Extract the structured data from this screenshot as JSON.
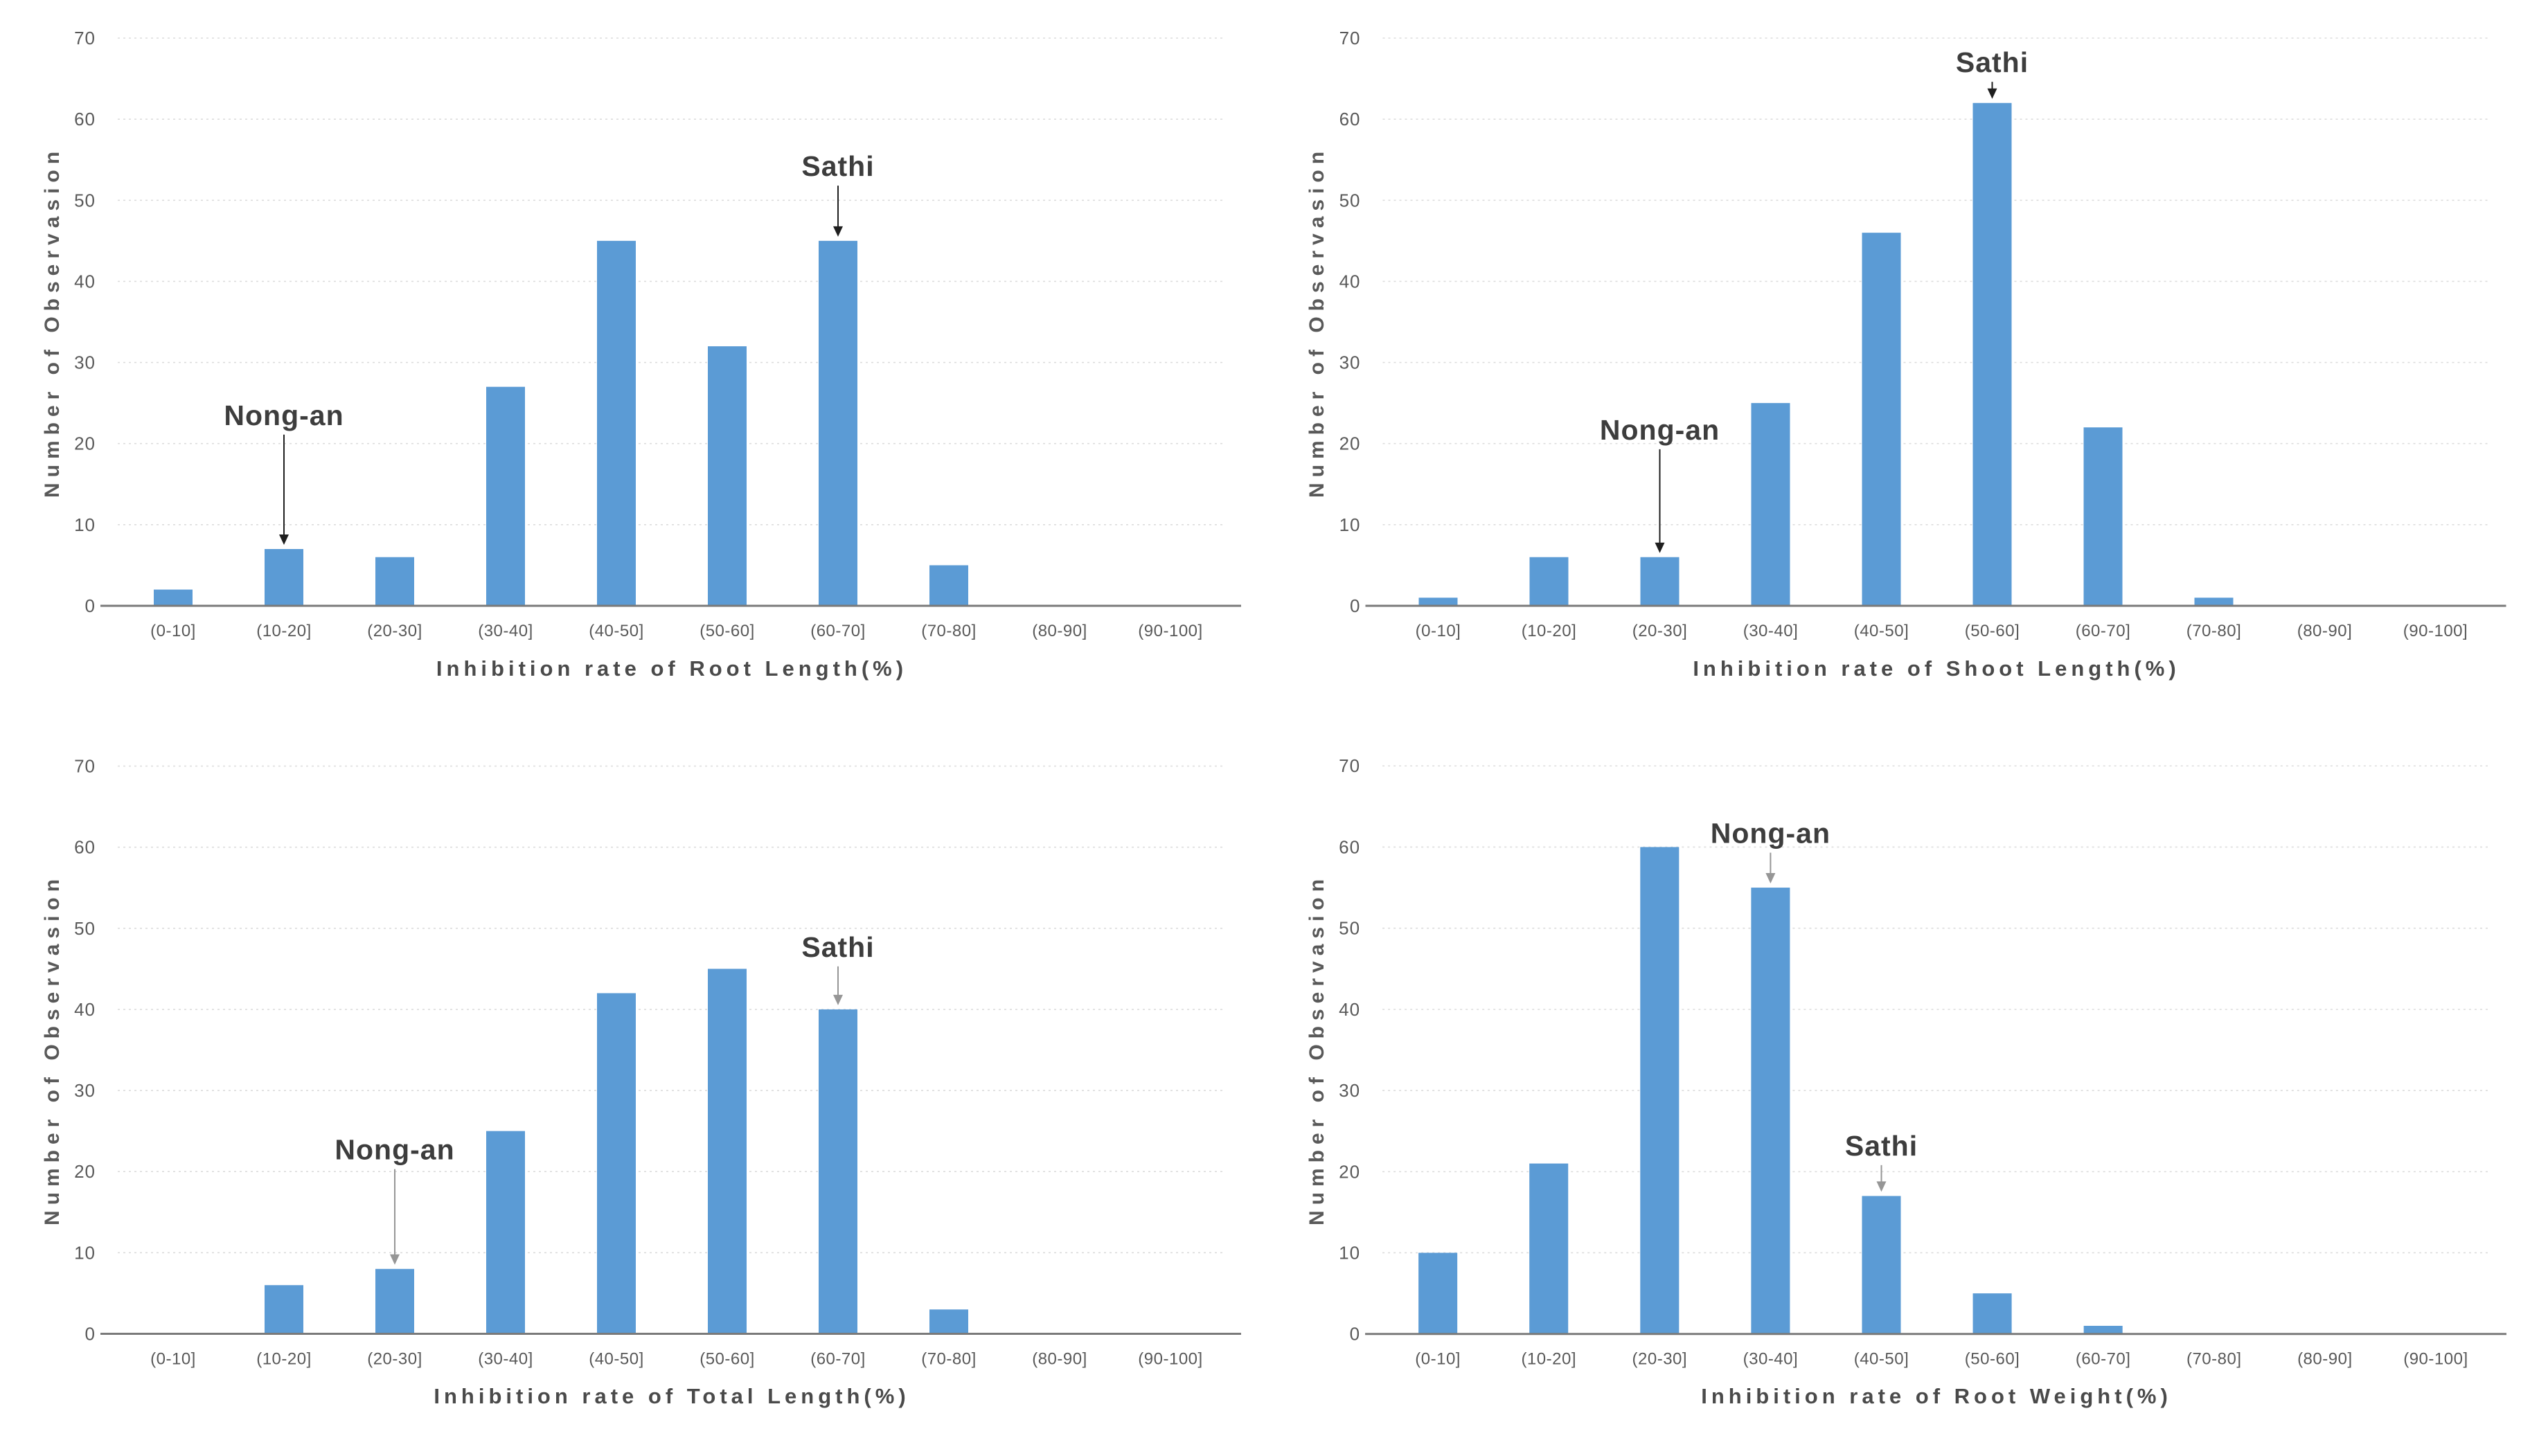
{
  "figure": {
    "background": "#ffffff",
    "bar_color": "#5b9bd5",
    "grid_color": "#dcdcdc",
    "axis_color": "#7a7a7a",
    "tick_color": "#595959",
    "axis_title_color": "#4a4a4a",
    "annotation_text_color": "#3d3d3d",
    "grid_style": "dotted horizontal gridlines, no y-axis spine, solid gray x-axis"
  },
  "chart_data": [
    {
      "type": "bar",
      "xlabel": "Inhibition rate of Root Length(%)",
      "ylabel": "Number of Observasion",
      "categories": [
        "(0-10]",
        "(10-20]",
        "(20-30]",
        "(30-40]",
        "(40-50]",
        "(50-60]",
        "(60-70]",
        "(70-80]",
        "(80-90]",
        "(90-100]"
      ],
      "values": [
        2,
        7,
        6,
        27,
        45,
        32,
        45,
        5,
        0,
        0
      ],
      "ylim": [
        0,
        70
      ],
      "yticks": [
        0,
        10,
        20,
        30,
        40,
        50,
        60,
        70
      ],
      "legend": "none",
      "annotations": [
        {
          "label": "Nong-an",
          "target_category": "(10-20]",
          "target_index": 1,
          "target_value": 7,
          "text_y": 22.3,
          "arrow_color": "#1f1f1f"
        },
        {
          "label": "Sathi",
          "target_category": "(60-70]",
          "target_index": 6,
          "target_value": 45,
          "text_y": 53.0,
          "arrow_color": "#1f1f1f"
        }
      ]
    },
    {
      "type": "bar",
      "xlabel": "Inhibition rate of Shoot Length(%)",
      "ylabel": "Number of Observasion",
      "categories": [
        "(0-10]",
        "(10-20]",
        "(20-30]",
        "(30-40]",
        "(40-50]",
        "(50-60]",
        "(60-70]",
        "(70-80]",
        "(80-90]",
        "(90-100]"
      ],
      "values": [
        1,
        6,
        6,
        25,
        46,
        62,
        22,
        1,
        0,
        0
      ],
      "ylim": [
        0,
        70
      ],
      "yticks": [
        0,
        10,
        20,
        30,
        40,
        50,
        60,
        70
      ],
      "legend": "none",
      "annotations": [
        {
          "label": "Nong-an",
          "target_category": "(20-30]",
          "target_index": 2,
          "target_value": 6,
          "text_y": 20.5,
          "arrow_color": "#1f1f1f"
        },
        {
          "label": "Sathi",
          "target_category": "(50-60]",
          "target_index": 5,
          "target_value": 62,
          "text_y": 65.8,
          "arrow_color": "#1f1f1f"
        }
      ]
    },
    {
      "type": "bar",
      "xlabel": "Inhibition rate of Total Length(%)",
      "ylabel": "Number of Observasion",
      "categories": [
        "(0-10]",
        "(10-20]",
        "(20-30]",
        "(30-40]",
        "(40-50]",
        "(50-60]",
        "(60-70]",
        "(70-80]",
        "(80-90]",
        "(90-100]"
      ],
      "values": [
        0,
        6,
        8,
        25,
        42,
        45,
        40,
        3,
        0,
        0
      ],
      "ylim": [
        0,
        70
      ],
      "yticks": [
        0,
        10,
        20,
        30,
        40,
        50,
        60,
        70
      ],
      "legend": "none",
      "annotations": [
        {
          "label": "Nong-an",
          "target_category": "(20-30]",
          "target_index": 2,
          "target_value": 8,
          "text_y": 21.5,
          "arrow_color": "#969696"
        },
        {
          "label": "Sathi",
          "target_category": "(60-70]",
          "target_index": 6,
          "target_value": 40,
          "text_y": 46.5,
          "arrow_color": "#969696"
        }
      ]
    },
    {
      "type": "bar",
      "xlabel": "Inhibition rate of Root Weight(%)",
      "ylabel": "Number of Observasion",
      "categories": [
        "(0-10]",
        "(10-20]",
        "(20-30]",
        "(30-40]",
        "(40-50]",
        "(50-60]",
        "(60-70]",
        "(70-80]",
        "(80-90]",
        "(90-100]"
      ],
      "values": [
        10,
        21,
        60,
        55,
        17,
        5,
        1,
        0,
        0,
        0
      ],
      "ylim": [
        0,
        70
      ],
      "yticks": [
        0,
        10,
        20,
        30,
        40,
        50,
        60,
        70
      ],
      "legend": "none",
      "annotations": [
        {
          "label": "Nong-an",
          "target_category": "(30-40]",
          "target_index": 3,
          "target_value": 55,
          "text_y": 60.5,
          "arrow_color": "#969696"
        },
        {
          "label": "Sathi",
          "target_category": "(40-50]",
          "target_index": 4,
          "target_value": 17,
          "text_y": 22.0,
          "arrow_color": "#969696"
        }
      ]
    }
  ]
}
